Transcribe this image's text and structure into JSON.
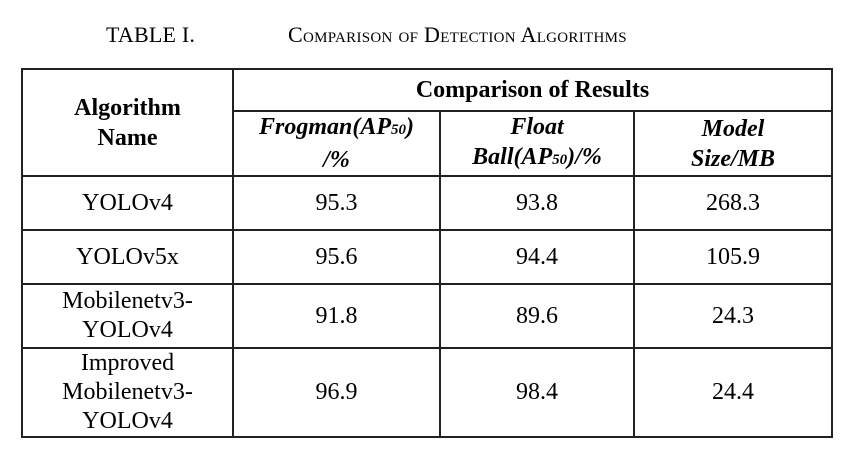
{
  "caption": {
    "label": "TABLE I.",
    "title": "Comparison of Detection Algorithms"
  },
  "table": {
    "header": {
      "algorithm": "Algorithm\nName",
      "group": "Comparison of Results",
      "frogman_main": "Frogman(AP",
      "frogman_sub": "50",
      "frogman_tail": ")\n/%",
      "float_main": "Float\nBall(AP",
      "float_sub": "50",
      "float_tail": ")/%",
      "model_size": "Model\nSize/MB"
    },
    "rows": [
      {
        "algorithm": "YOLOv4",
        "frogman": "95.3",
        "float_ball": "93.8",
        "model_size": "268.3",
        "bold": false
      },
      {
        "algorithm": "YOLOv5x",
        "frogman": "95.6",
        "float_ball": "94.4",
        "model_size": "105.9",
        "bold": false
      },
      {
        "algorithm": "Mobilenetv3-\nYOLOv4",
        "frogman": "91.8",
        "float_ball": "89.6",
        "model_size": "24.3",
        "bold": false
      },
      {
        "algorithm": "Improved\nMobilenetv3-\nYOLOv4",
        "frogman": "96.9",
        "float_ball": "98.4",
        "model_size": "24.4",
        "bold": true
      }
    ]
  }
}
